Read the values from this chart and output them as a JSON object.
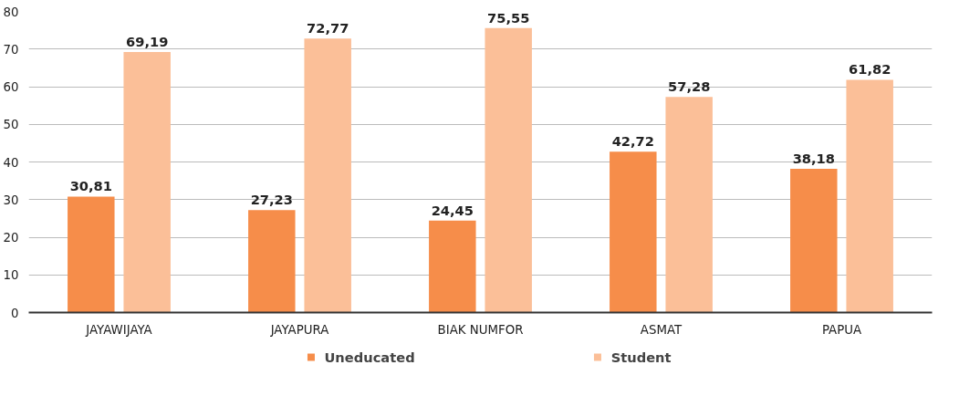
{
  "chart_data": {
    "type": "bar",
    "categories": [
      "JAYAWIJAYA",
      "JAYAPURA",
      "BIAK NUMFOR",
      "ASMAT",
      "PAPUA"
    ],
    "series": [
      {
        "name": "Uneducated",
        "color": "#f68d4a",
        "values": [
          30.81,
          27.23,
          24.45,
          42.72,
          38.18
        ],
        "value_labels": [
          "30,81",
          "27,23",
          "24,45",
          "42,72",
          "38,18"
        ]
      },
      {
        "name": "Student",
        "color": "#fbbf98",
        "values": [
          69.19,
          72.77,
          75.55,
          57.28,
          61.82
        ],
        "value_labels": [
          "69,19",
          "72,77",
          "75,55",
          "57,28",
          "61,82"
        ]
      }
    ],
    "ylim": [
      0,
      80
    ],
    "yticks": [
      0,
      10,
      20,
      30,
      40,
      50,
      60,
      70,
      80
    ],
    "grid": "y",
    "legend": "bottom"
  }
}
